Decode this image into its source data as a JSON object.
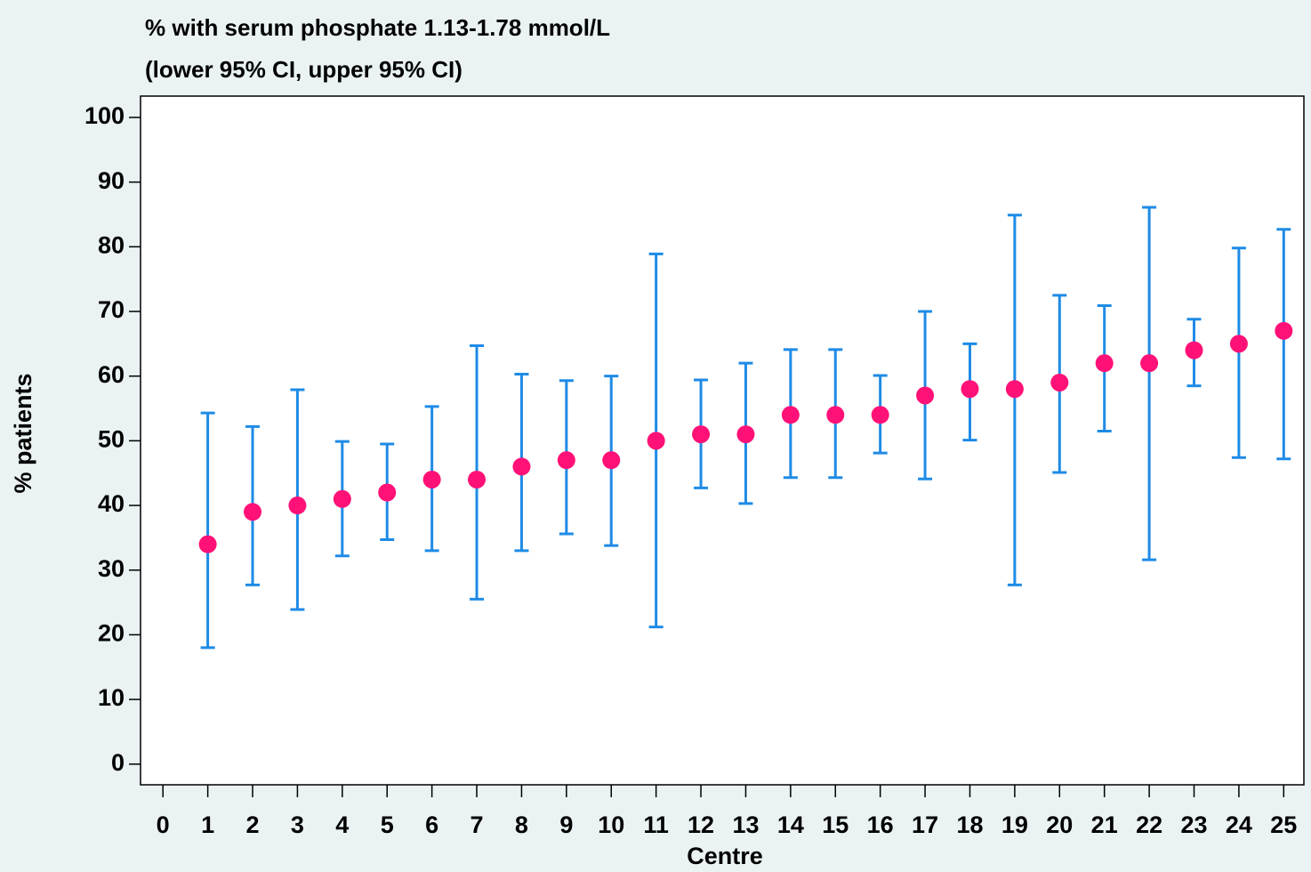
{
  "chart_data": {
    "type": "errorbar",
    "title": "% with serum phosphate 1.13-1.78 mmol/L",
    "subtitle": "(lower 95% CI, upper 95% CI)",
    "x_label": "Centre",
    "y_label": "% patients",
    "xlim": [
      -0.5,
      25.45
    ],
    "ylim": [
      -3.2,
      103.3
    ],
    "xticks": [
      0,
      1,
      2,
      3,
      4,
      5,
      6,
      7,
      8,
      9,
      10,
      11,
      12,
      13,
      14,
      15,
      16,
      17,
      18,
      19,
      20,
      21,
      22,
      23,
      24,
      25
    ],
    "yticks": [
      0,
      10,
      20,
      30,
      40,
      50,
      60,
      70,
      80,
      90,
      100
    ],
    "grid": false,
    "series": [
      {
        "name": "% patients",
        "color": "#ff1177",
        "error_color": "#1e8be6",
        "x": [
          1,
          2,
          3,
          4,
          5,
          6,
          7,
          8,
          9,
          10,
          11,
          12,
          13,
          14,
          15,
          16,
          17,
          18,
          19,
          20,
          21,
          22,
          23,
          24,
          25
        ],
        "values": [
          34,
          39,
          40,
          41,
          42,
          44,
          44,
          46,
          47,
          47,
          50,
          51,
          51,
          54,
          54,
          54,
          57,
          58,
          58,
          59,
          62,
          62,
          64,
          65,
          67
        ],
        "lower": [
          18,
          27.7,
          23.9,
          32.2,
          34.7,
          33,
          25.5,
          33,
          35.6,
          33.8,
          21.2,
          42.7,
          40.3,
          44.3,
          44.3,
          48.1,
          44.1,
          50.1,
          27.7,
          45.1,
          51.5,
          31.6,
          58.5,
          47.4,
          47.2
        ],
        "upper": [
          54.3,
          52.2,
          57.9,
          49.9,
          49.5,
          55.3,
          64.7,
          60.3,
          59.3,
          60,
          78.9,
          59.4,
          62,
          64.1,
          64.1,
          60.1,
          70,
          65,
          84.9,
          72.5,
          70.9,
          86.1,
          68.8,
          79.8,
          82.7
        ]
      }
    ]
  }
}
